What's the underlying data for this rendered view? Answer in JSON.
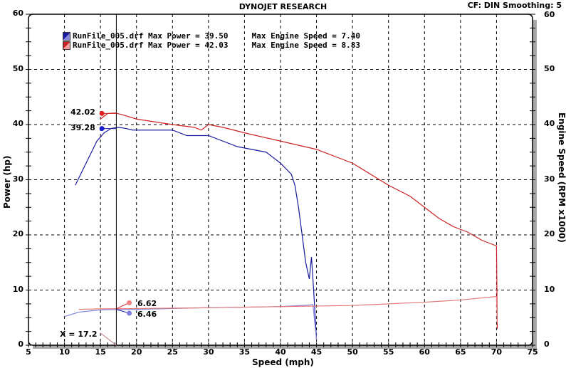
{
  "header": {
    "title": "DYNOJET RESEARCH",
    "settings": "CF: DIN  Smoothing: 5"
  },
  "axes": {
    "x_label": "Speed (mph)",
    "y_left_label": "Power (hp)",
    "y_right_label": "Engine Speed (RPM x1000)",
    "x_ticks": [
      "5",
      "10",
      "15",
      "20",
      "25",
      "30",
      "35",
      "40",
      "45",
      "50",
      "55",
      "60",
      "65",
      "70",
      "75"
    ],
    "y_ticks": [
      "0",
      "10",
      "20",
      "30",
      "40",
      "50",
      "60"
    ]
  },
  "legend": [
    {
      "file": "RunFile_005.drf",
      "text": "RunFile_005.drf Max Power = 39.50     Max Engine Speed = 7.40",
      "color": "#1a1aa0"
    },
    {
      "file": "RunFile_005.drf",
      "text": "RunFile_005.drf Max Power = 42.03     Max Engine Speed = 8.83",
      "color": "#cc2222"
    }
  ],
  "cursor": {
    "label": "X = 17.2",
    "power_red": "42.02",
    "power_blue": "39.28",
    "rpm_red": "6.62",
    "rpm_blue": "6.46"
  },
  "chart_data": {
    "type": "line",
    "title": "DYNOJET RESEARCH",
    "subtitle": "CF: DIN  Smoothing: 5",
    "xlabel": "Speed (mph)",
    "ylabel": "Power (hp)",
    "y2label": "Engine Speed (RPM x1000)",
    "xlim": [
      5,
      75
    ],
    "ylim": [
      0,
      60
    ],
    "y2lim": [
      0,
      60
    ],
    "grid": true,
    "legend_position": "top-left",
    "cursor_x": 17.2,
    "series": [
      {
        "name": "RunFile_005.drf Power (Max Power = 39.50)",
        "axis": "left",
        "color": "#1a1aa0",
        "x": [
          11.5,
          13,
          14.5,
          15.5,
          16.5,
          17.5,
          18.5,
          19.5,
          22,
          25,
          27,
          30,
          32,
          34,
          36,
          38,
          40,
          41.5,
          42,
          42.5,
          43,
          43.5,
          44,
          44.3,
          44.6,
          45
        ],
        "y": [
          29,
          33,
          37,
          38.5,
          39.3,
          39.5,
          39.3,
          39,
          39,
          39,
          38,
          38,
          37,
          36,
          35.5,
          35,
          33,
          31,
          29,
          25,
          20,
          15,
          12,
          16,
          10,
          1
        ]
      },
      {
        "name": "RunFile_005.drf Power (Max Power = 42.03)",
        "axis": "left",
        "color": "#cc2222",
        "x": [
          15,
          16,
          17,
          18,
          20,
          25,
          28,
          29,
          30,
          32,
          35,
          40,
          45,
          50,
          55,
          58,
          60,
          62,
          64,
          66,
          68,
          69,
          70,
          70.1
        ],
        "y": [
          41,
          42,
          42.1,
          41.8,
          41,
          40,
          39.5,
          39,
          40,
          39.5,
          38.5,
          37,
          35.5,
          33,
          29,
          27,
          25,
          23,
          21.5,
          20.5,
          19,
          18.5,
          18,
          3
        ]
      },
      {
        "name": "RunFile_005.drf Engine Speed (Max = 7.40)",
        "axis": "right",
        "color": "#8888dd",
        "x": [
          10,
          12,
          15,
          17.2,
          20,
          30,
          40,
          44,
          44.5,
          45
        ],
        "y": [
          5.2,
          6,
          6.4,
          6.46,
          6.5,
          6.8,
          7,
          7.3,
          7.4,
          1
        ]
      },
      {
        "name": "RunFile_005.drf Engine Speed (Max = 8.83)",
        "axis": "right",
        "color": "#e07878",
        "x": [
          12,
          15,
          17.2,
          20,
          30,
          40,
          50,
          60,
          65,
          70,
          70.1
        ],
        "y": [
          6.5,
          6.6,
          6.62,
          6.65,
          6.8,
          7,
          7.2,
          7.8,
          8.2,
          8.83,
          4
        ]
      }
    ],
    "annotations": [
      {
        "text": "42.02",
        "x": 15.2,
        "y": 42.02
      },
      {
        "text": "39.28",
        "x": 15.2,
        "y": 39.28
      },
      {
        "text": "6.62",
        "x": 19,
        "y": 7.7
      },
      {
        "text": "6.46",
        "x": 19,
        "y": 5.8
      },
      {
        "text": "X = 17.2",
        "x": 9.5,
        "y": 2
      }
    ]
  }
}
